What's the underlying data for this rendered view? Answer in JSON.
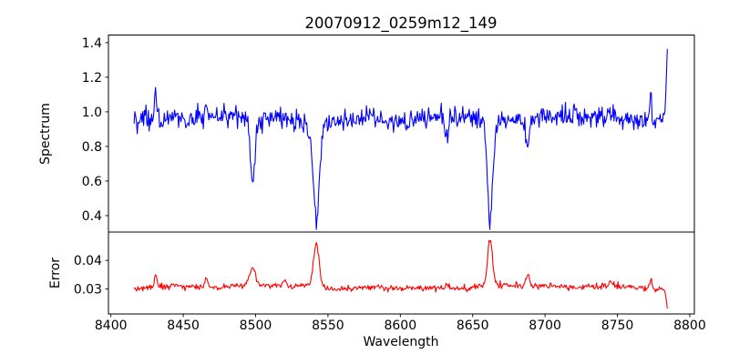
{
  "figure": {
    "background": "#ffffff",
    "text_color": "#000000",
    "frame_color": "#000000"
  },
  "chart_data": [
    {
      "type": "line",
      "panel": "spectrum",
      "title": "20070912_0259m12_149",
      "ylabel": "Spectrum",
      "series_color": "#0000ff",
      "legend": "none",
      "grid": false,
      "xlim": [
        8398.3,
        8803.2
      ],
      "ylim": [
        0.305,
        1.444
      ],
      "ytick_values": [
        0.4,
        0.6,
        0.8,
        1.0,
        1.2,
        1.4
      ],
      "ytick_labels": [
        "0.4",
        "0.6",
        "0.8",
        "1.0",
        "1.2",
        "1.4"
      ],
      "x_start": 8416,
      "x_end": 8785,
      "x_step": 0.55,
      "continuum_level": 0.965,
      "noise_sigma": 0.03,
      "wiggle_amp": 0.012,
      "seed": 20070912,
      "features": [
        {
          "center": 8431.0,
          "sigma": 0.7,
          "amp": 0.19
        },
        {
          "center": 8466.0,
          "sigma": 0.8,
          "amp": 0.1
        },
        {
          "center": 8498.0,
          "sigma": 1.7,
          "amp": -0.33
        },
        {
          "center": 8498.0,
          "sigma": 5.5,
          "amp": -0.045
        },
        {
          "center": 8542.0,
          "sigma": 2.1,
          "amp": -0.5
        },
        {
          "center": 8542.0,
          "sigma": 7.0,
          "amp": -0.07
        },
        {
          "center": 8632.0,
          "sigma": 1.2,
          "amp": -0.1
        },
        {
          "center": 8662.0,
          "sigma": 1.7,
          "amp": -0.58
        },
        {
          "center": 8662.0,
          "sigma": 6.0,
          "amp": -0.055
        },
        {
          "center": 8688.0,
          "sigma": 1.3,
          "amp": -0.16
        },
        {
          "center": 8773.0,
          "sigma": 0.7,
          "amp": 0.15
        },
        {
          "center": 8784.8,
          "sigma": 0.8,
          "amp": 0.43
        }
      ]
    },
    {
      "type": "line",
      "panel": "error",
      "ylabel": "Error",
      "xlabel": "Wavelength",
      "series_color": "#ff0000",
      "legend": "none",
      "grid": false,
      "xlim": [
        8398.3,
        8803.2
      ],
      "ylim": [
        0.0213,
        0.0499
      ],
      "ytick_values": [
        0.03,
        0.04
      ],
      "ytick_labels": [
        "0.03",
        "0.04"
      ],
      "xtick_values": [
        8400,
        8450,
        8500,
        8550,
        8600,
        8650,
        8700,
        8750,
        8800
      ],
      "xtick_labels": [
        "8400",
        "8450",
        "8500",
        "8550",
        "8600",
        "8650",
        "8700",
        "8750",
        "8800"
      ],
      "x_start": 8416,
      "x_end": 8785,
      "x_step": 0.55,
      "continuum_level": 0.0307,
      "noise_sigma": 0.00052,
      "wiggle_amp": 0.0005,
      "seed": 259,
      "features": [
        {
          "center": 8431.0,
          "sigma": 0.9,
          "amp": 0.005
        },
        {
          "center": 8466.0,
          "sigma": 1.2,
          "amp": 0.0028
        },
        {
          "center": 8498.0,
          "sigma": 1.9,
          "amp": 0.0062
        },
        {
          "center": 8520.0,
          "sigma": 1.0,
          "amp": 0.002
        },
        {
          "center": 8542.0,
          "sigma": 2.0,
          "amp": 0.015
        },
        {
          "center": 8632.0,
          "sigma": 1.0,
          "amp": 0.002
        },
        {
          "center": 8662.0,
          "sigma": 1.6,
          "amp": 0.016
        },
        {
          "center": 8688.0,
          "sigma": 1.3,
          "amp": 0.0042
        },
        {
          "center": 8745.0,
          "sigma": 1.0,
          "amp": 0.002
        },
        {
          "center": 8773.0,
          "sigma": 0.8,
          "amp": 0.0032
        },
        {
          "center": 8785.0,
          "sigma": 1.1,
          "amp": -0.0075
        }
      ]
    }
  ]
}
